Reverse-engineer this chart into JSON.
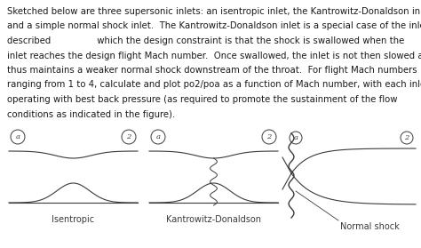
{
  "text_lines": [
    "Sketched below are three supersonic inlets: an isentropic inlet, the Kantrowitz-Donaldson inlet",
    "and a simple normal shock inlet.  The Kantrowitz-Donaldson inlet is a special case of the inlet",
    "described                which the design constraint is that the shock is swallowed when the",
    "inlet reaches the design flight Mach number.  Once swallowed, the inlet is not then slowed and",
    "thus maintains a weaker normal shock downstream of the throat.  For flight Mach numbers",
    "ranging from 1 to 4, calculate and plot po2/poa as a function of Mach number, with each inlet",
    "operating with best back pressure (as required to promote the sustainment of the flow",
    "conditions as indicated in the figure)."
  ],
  "label_isentropic": "Isentropic",
  "label_kd": "Kantrowitz-Donaldson",
  "label_ns": "Normal shock",
  "bg_color": "#ffffff",
  "text_color": "#1a1a1a",
  "sketch_color": "#3a3a3a",
  "fontsize_body": 7.3,
  "fontsize_label": 7.0,
  "fontsize_circle": 6.0
}
